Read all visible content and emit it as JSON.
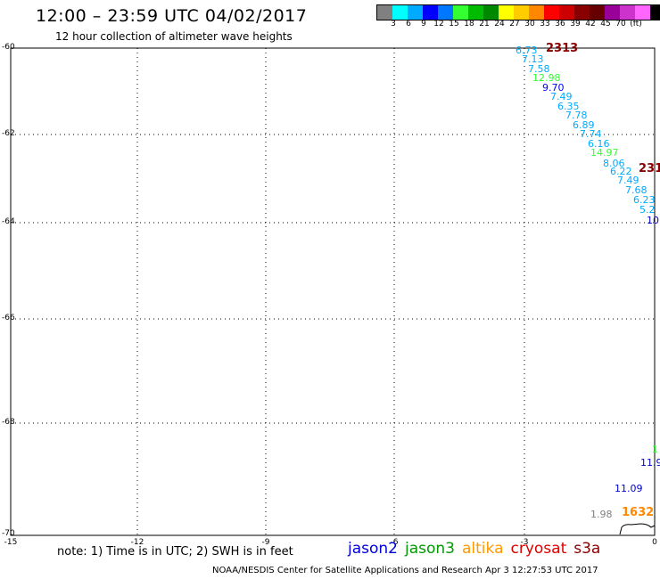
{
  "header": {
    "title": "12:00 – 23:59 UTC 04/02/2017",
    "subtitle": "12 hour collection of altimeter wave heights"
  },
  "legend": {
    "colors": [
      "#808080",
      "#00ffff",
      "#00aaff",
      "#0000ff",
      "#0077ff",
      "#33ff33",
      "#00bb00",
      "#008800",
      "#ffff00",
      "#ffcc00",
      "#ff8800",
      "#ff0000",
      "#cc0000",
      "#880000",
      "#660000",
      "#990099",
      "#cc33cc",
      "#ff66ff",
      "#000000"
    ],
    "labels": [
      "3",
      "6",
      "9",
      "12",
      "15",
      "18",
      "21",
      "24",
      "27",
      "30",
      "33",
      "36",
      "39",
      "42",
      "45",
      "70",
      "(ft)"
    ]
  },
  "axes": {
    "y_labels": [
      "-60",
      "-62",
      "-64",
      "-66",
      "-68",
      "-70"
    ],
    "x_labels": [
      "-15",
      "-12",
      "-9",
      "-6",
      "-3",
      "0"
    ]
  },
  "passes": [
    {
      "id": "2313",
      "color": "#880000"
    },
    {
      "id": "231",
      "color": "#880000"
    },
    {
      "id": "1632",
      "color": "#ff8800"
    }
  ],
  "observations": [
    {
      "value": "6.73",
      "color": "#00aaff"
    },
    {
      "value": "7.13",
      "color": "#00aaff"
    },
    {
      "value": "7.58",
      "color": "#00aaff"
    },
    {
      "value": "12.98",
      "color": "#33ff33"
    },
    {
      "value": "9.70",
      "color": "#0000ff"
    },
    {
      "value": "7.49",
      "color": "#00aaff"
    },
    {
      "value": "6.35",
      "color": "#00aaff"
    },
    {
      "value": "7.78",
      "color": "#00aaff"
    },
    {
      "value": "6.89",
      "color": "#00aaff"
    },
    {
      "value": "7.74",
      "color": "#00aaff"
    },
    {
      "value": "6.16",
      "color": "#00aaff"
    },
    {
      "value": "14.97",
      "color": "#33ff33"
    },
    {
      "value": "8.06",
      "color": "#00aaff"
    },
    {
      "value": "6.22",
      "color": "#00aaff"
    },
    {
      "value": "7.49",
      "color": "#00aaff"
    },
    {
      "value": "7.68",
      "color": "#00aaff"
    },
    {
      "value": "6.23",
      "color": "#00aaff"
    },
    {
      "value": "5.2",
      "color": "#00aaff"
    },
    {
      "value": "10",
      "color": "#0000cc"
    },
    {
      "value": "1",
      "color": "#33ff33"
    },
    {
      "value": "11.9",
      "color": "#0000cc"
    },
    {
      "value": "11.09",
      "color": "#0000cc"
    },
    {
      "value": "1.98",
      "color": "#808080"
    }
  ],
  "footer": {
    "note": "note: 1) Time is in UTC; 2) SWH is in feet",
    "satellites": [
      {
        "name": "jason2",
        "color": "#0000dd"
      },
      {
        "name": "jason3",
        "color": "#009900"
      },
      {
        "name": "altika",
        "color": "#ff9900"
      },
      {
        "name": "cryosat",
        "color": "#dd0000"
      },
      {
        "name": "s3a",
        "color": "#880000"
      }
    ],
    "credit": "NOAA/NESDIS Center for Satellite Applications and Research    Apr  3 12:27:53 UTC 2017"
  }
}
